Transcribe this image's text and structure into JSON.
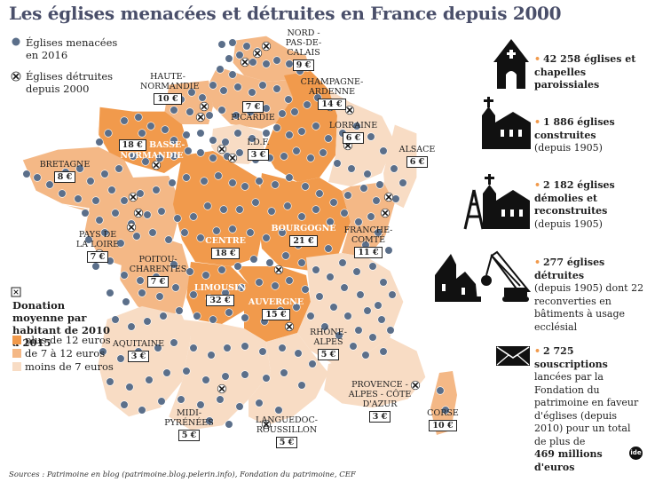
{
  "title": "Les églises menacées et détruites en France depuis 2000",
  "colors": {
    "dark": "#f19a4c",
    "medium": "#f4b886",
    "light": "#f8dcc4",
    "dot": "#5b6f8a",
    "box_border": "#222222"
  },
  "legend": {
    "threatened": "Églises menacées en 2016",
    "destroyed": "Églises détruites depuis 2000",
    "donation_title": "Donation moyenne par habitant de 2010 à 2015",
    "level_high": "plus de 12 euros",
    "level_mid": "de 7 à 12 euros",
    "level_low": "moins de 7 euros"
  },
  "regions": [
    {
      "name": "NORD - PAS-DE- CALAIS",
      "price": "9 €",
      "level": "mid"
    },
    {
      "name": "HAUTE- NORMANDIE",
      "price": "10 €",
      "level": "mid"
    },
    {
      "name": "CHAMPAGNE- ARDENNE",
      "price": "14 €",
      "level": "high"
    },
    {
      "name": "PICARDIE",
      "price": "7 €",
      "level": "mid"
    },
    {
      "name": "LORRAINE",
      "price": "6 €",
      "level": "low"
    },
    {
      "name": "ALSACE",
      "price": "6 €",
      "level": "low"
    },
    {
      "name": "BASSE- NORMANDIE",
      "price": "18 €",
      "level": "high"
    },
    {
      "name": "I.D.F.",
      "price": "3 €",
      "level": "low"
    },
    {
      "name": "BRETAGNE",
      "price": "8 €",
      "level": "mid"
    },
    {
      "name": "CENTRE",
      "price": "18 €",
      "level": "high"
    },
    {
      "name": "BOURGOGNE",
      "price": "21 €",
      "level": "high"
    },
    {
      "name": "FRANCHE- COMTÉ",
      "price": "11 €",
      "level": "mid"
    },
    {
      "name": "PAYS DE LA LOIRE",
      "price": "7 €",
      "level": "mid"
    },
    {
      "name": "POITOU- CHARENTES",
      "price": "7 €",
      "level": "mid"
    },
    {
      "name": "LIMOUSIN",
      "price": "32 €",
      "level": "high"
    },
    {
      "name": "AUVERGNE",
      "price": "15 €",
      "level": "high"
    },
    {
      "name": "RHÔNE- ALPES",
      "price": "5 €",
      "level": "low"
    },
    {
      "name": "AQUITAINE",
      "price": "3 €",
      "level": "low"
    },
    {
      "name": "PROVENCE - ALPES - CÔTE D'AZUR",
      "price": "3 €",
      "level": "low"
    },
    {
      "name": "MIDI- PYRÉNÉES",
      "price": "5 €",
      "level": "low"
    },
    {
      "name": "LANGUEDOC- ROUSSILLON",
      "price": "5 €",
      "level": "low"
    },
    {
      "name": "CORSE",
      "price": "10 €",
      "level": "mid"
    }
  ],
  "stats": [
    {
      "icon": "chapel-icon",
      "bold": "42 258 églises et chapelles paroissiales",
      "rest": ""
    },
    {
      "icon": "church-icon",
      "bold": "1 886 églises construites",
      "rest": "(depuis 1905)"
    },
    {
      "icon": "church-rebuilt-icon",
      "bold": "2 182 églises démolies et reconstruites",
      "rest": "(depuis 1905)"
    },
    {
      "icon": "church-demolition-icon",
      "bold": "277 églises détruites",
      "rest": "(depuis 1905) dont 22 reconverties en bâtiments à usage ecclésial"
    },
    {
      "icon": "envelope-icon",
      "bold": "2 725 souscriptions",
      "rest": "lancées par la Fondation du patrimoine en faveur d'églises (depuis 2010) pour un total de plus de",
      "bold_end": "469 millions d'euros"
    }
  ],
  "sources": "Sources : Patrimoine en blog (patrimoine.blog.pelerin.info), Fondation du patrimoine, CEF",
  "logo": "ide"
}
